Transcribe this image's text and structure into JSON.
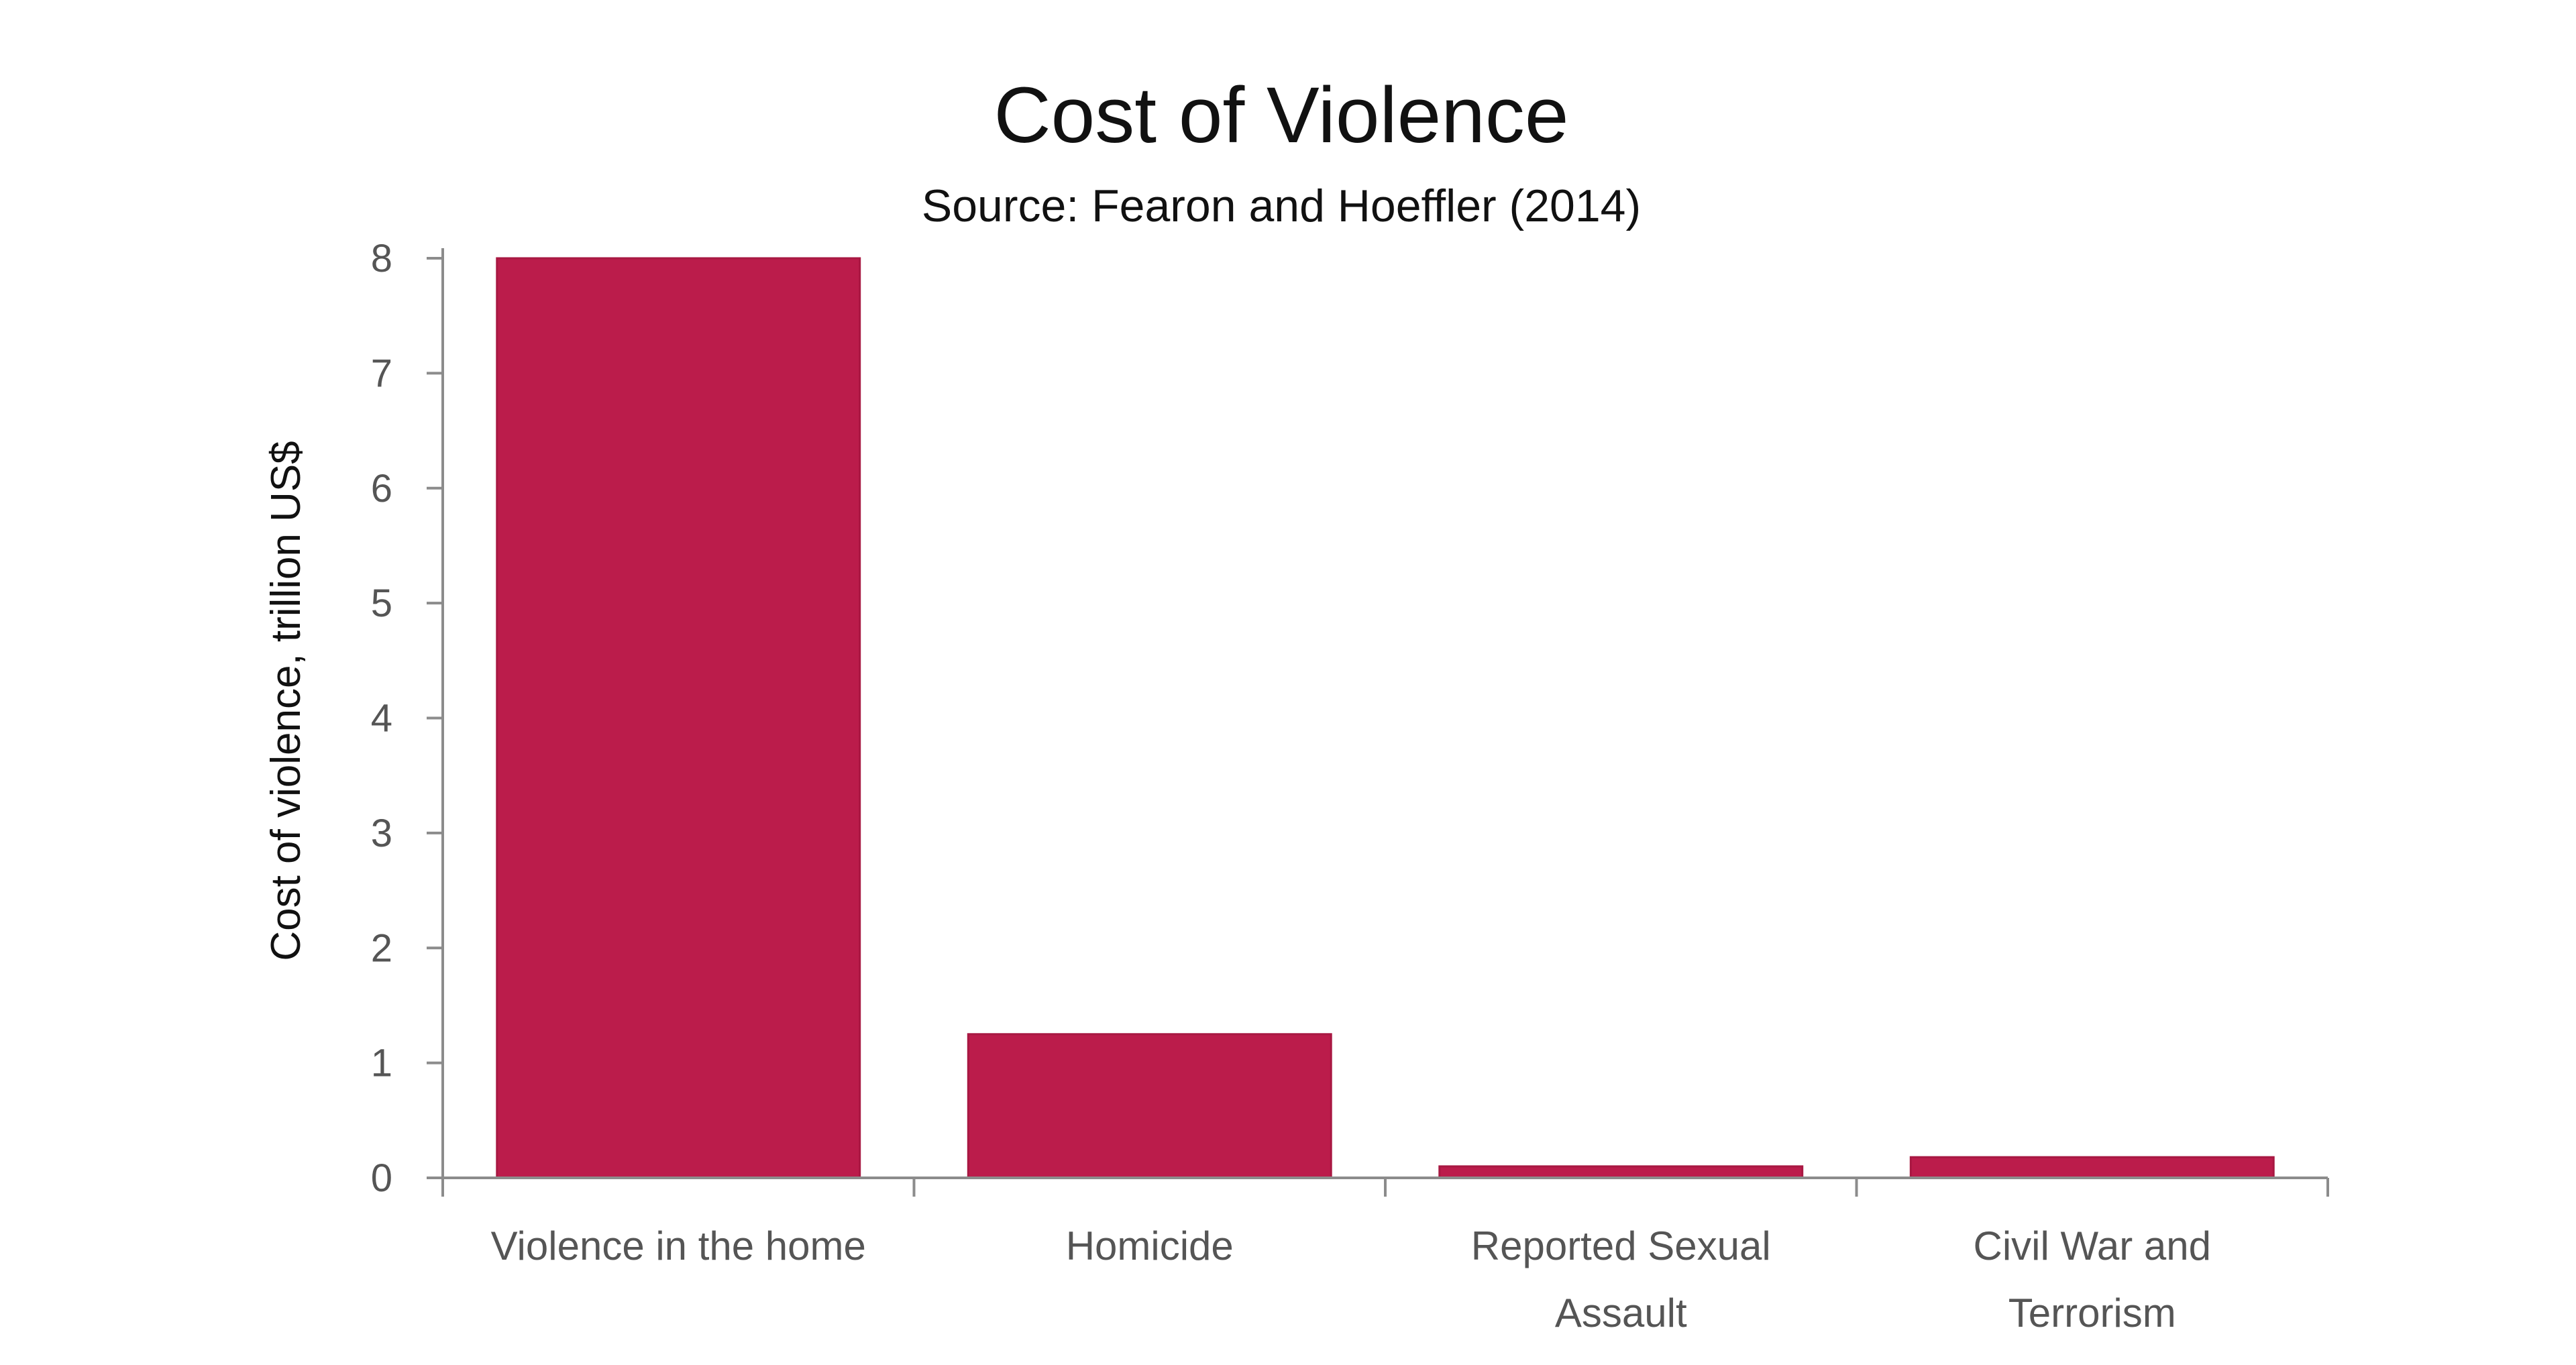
{
  "chart_data": {
    "type": "bar",
    "title": "Cost of Violence",
    "subtitle": "Source: Fearon and Hoeffler (2014)",
    "xlabel": "",
    "ylabel": "Cost of violence, trillion US$",
    "ylim": [
      0,
      8
    ],
    "yticks": [
      "0",
      "1",
      "2",
      "3",
      "4",
      "5",
      "6",
      "7",
      "8"
    ],
    "categories": [
      [
        "Violence in the home"
      ],
      [
        "Homicide"
      ],
      [
        "Reported Sexual",
        "Assault"
      ],
      [
        "Civil War and",
        "Terrorism"
      ]
    ],
    "values": [
      8.0,
      1.25,
      0.1,
      0.18
    ],
    "grid": false,
    "legend": "none",
    "bar_color": "#bb1c4b"
  }
}
